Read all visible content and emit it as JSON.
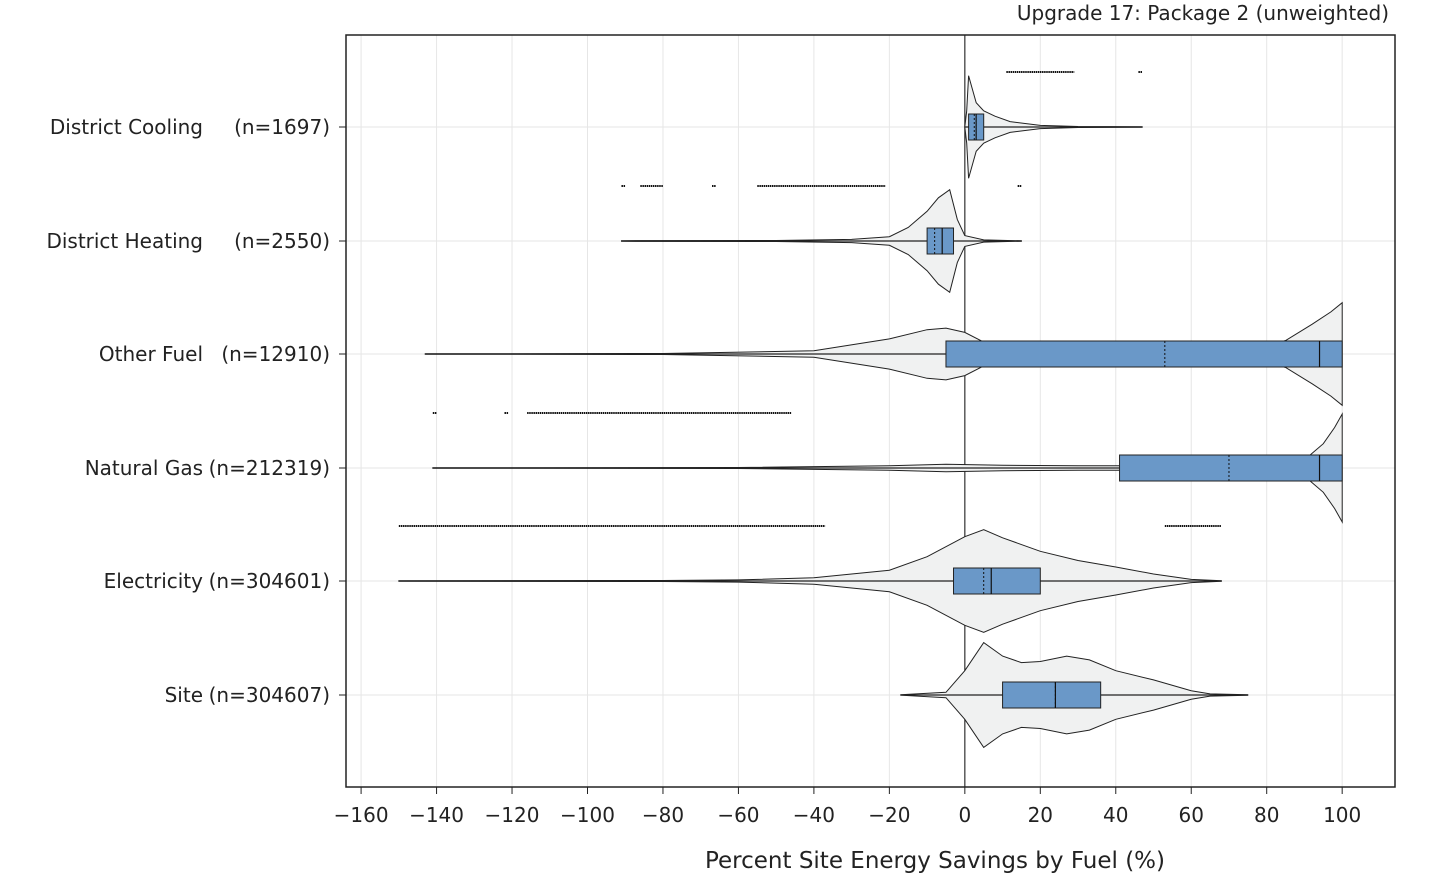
{
  "chart_data": {
    "type": "violin",
    "title": "Upgrade 17: Package 2 (unweighted)",
    "xlabel": "Percent Site Energy Savings by Fuel (%)",
    "ylabel": "",
    "xlim": [
      -164,
      114
    ],
    "xticks": [
      -160,
      -140,
      -120,
      -100,
      -80,
      -60,
      -40,
      -20,
      0,
      20,
      40,
      60,
      80,
      100
    ],
    "xtick_labels": [
      "−160",
      "−140",
      "−120",
      "−100",
      "−80",
      "−60",
      "−40",
      "−20",
      "0",
      "20",
      "40",
      "60",
      "80",
      "100"
    ],
    "grid": true,
    "reference_line_x": 0,
    "colors": {
      "box": "#6a98c8",
      "violin": "#f0f1f1",
      "outline": "#222222",
      "grid": "#e6e6e6"
    },
    "categories": [
      {
        "name": "District Cooling",
        "n_label": "(n=1697)",
        "whisker": [
          0,
          47
        ],
        "q1": 1,
        "median": 3,
        "mean": 2.5,
        "q3": 5,
        "violin": [
          [
            0,
            0
          ],
          [
            0.5,
            0.3
          ],
          [
            1,
            0.95
          ],
          [
            2,
            0.7
          ],
          [
            3,
            0.45
          ],
          [
            5,
            0.3
          ],
          [
            8,
            0.2
          ],
          [
            12,
            0.1
          ],
          [
            20,
            0.03
          ],
          [
            30,
            0.01
          ],
          [
            47,
            0.004
          ]
        ],
        "outliers": [
          [
            11,
            29
          ],
          [
            46,
            47
          ]
        ]
      },
      {
        "name": "District Heating",
        "n_label": "(n=2550)",
        "whisker": [
          -91,
          15
        ],
        "q1": -10,
        "median": -6,
        "mean": -8,
        "q3": -3,
        "violin": [
          [
            -91,
            0.005
          ],
          [
            -50,
            0.01
          ],
          [
            -30,
            0.03
          ],
          [
            -20,
            0.08
          ],
          [
            -15,
            0.25
          ],
          [
            -10,
            0.55
          ],
          [
            -7,
            0.8
          ],
          [
            -4,
            0.95
          ],
          [
            -2,
            0.4
          ],
          [
            0,
            0.1
          ],
          [
            5,
            0.02
          ],
          [
            15,
            0.004
          ]
        ],
        "outliers": [
          [
            -91,
            -90
          ],
          [
            -86,
            -80
          ],
          [
            -67,
            -66
          ],
          [
            -55,
            -21
          ],
          [
            14,
            15
          ]
        ]
      },
      {
        "name": "Other Fuel",
        "n_label": "(n=12910)",
        "whisker": [
          -143,
          100
        ],
        "q1": -5,
        "median": 94,
        "mean": 53,
        "q3": 100,
        "violin": [
          [
            -143,
            0.004
          ],
          [
            -80,
            0.01
          ],
          [
            -40,
            0.06
          ],
          [
            -20,
            0.28
          ],
          [
            -10,
            0.45
          ],
          [
            -5,
            0.48
          ],
          [
            0,
            0.4
          ],
          [
            5,
            0.22
          ],
          [
            10,
            0.06
          ],
          [
            20,
            0.02
          ],
          [
            50,
            0.015
          ],
          [
            75,
            0.05
          ],
          [
            85,
            0.25
          ],
          [
            92,
            0.55
          ],
          [
            97,
            0.78
          ],
          [
            100,
            0.95
          ]
        ],
        "outliers": []
      },
      {
        "name": "Natural Gas",
        "n_label": "(n=212319)",
        "whisker": [
          -141,
          100
        ],
        "q1": 41,
        "median": 94,
        "mean": 70,
        "q3": 100,
        "violin": [
          [
            -141,
            0.004
          ],
          [
            -60,
            0.01
          ],
          [
            -20,
            0.04
          ],
          [
            -5,
            0.07
          ],
          [
            10,
            0.05
          ],
          [
            30,
            0.04
          ],
          [
            60,
            0.04
          ],
          [
            80,
            0.06
          ],
          [
            90,
            0.15
          ],
          [
            95,
            0.45
          ],
          [
            98,
            0.75
          ],
          [
            100,
            1.0
          ]
        ],
        "outliers": [
          [
            -141,
            -140
          ],
          [
            -122,
            -121
          ],
          [
            -116,
            -46
          ]
        ]
      },
      {
        "name": "Electricity",
        "n_label": "(n=304601)",
        "whisker": [
          -150,
          68
        ],
        "q1": -3,
        "median": 7,
        "mean": 5,
        "q3": 20,
        "violin": [
          [
            -150,
            0.003
          ],
          [
            -80,
            0.01
          ],
          [
            -60,
            0.02
          ],
          [
            -40,
            0.06
          ],
          [
            -20,
            0.2
          ],
          [
            -10,
            0.45
          ],
          [
            0,
            0.82
          ],
          [
            5,
            0.95
          ],
          [
            10,
            0.8
          ],
          [
            20,
            0.55
          ],
          [
            30,
            0.38
          ],
          [
            40,
            0.26
          ],
          [
            50,
            0.13
          ],
          [
            60,
            0.03
          ],
          [
            68,
            0.005
          ]
        ],
        "outliers": [
          [
            -150,
            -37
          ],
          [
            53,
            68
          ]
        ]
      },
      {
        "name": "Site",
        "n_label": "(n=304607)",
        "whisker": [
          -17,
          75
        ],
        "q1": 10,
        "median": 24,
        "mean": 24,
        "q3": 36,
        "violin": [
          [
            -17,
            0.003
          ],
          [
            -5,
            0.05
          ],
          [
            0,
            0.45
          ],
          [
            5,
            0.97
          ],
          [
            10,
            0.72
          ],
          [
            15,
            0.6
          ],
          [
            20,
            0.62
          ],
          [
            27,
            0.72
          ],
          [
            33,
            0.65
          ],
          [
            40,
            0.45
          ],
          [
            50,
            0.28
          ],
          [
            60,
            0.08
          ],
          [
            65,
            0.02
          ],
          [
            75,
            0.003
          ]
        ],
        "outliers": []
      }
    ]
  }
}
